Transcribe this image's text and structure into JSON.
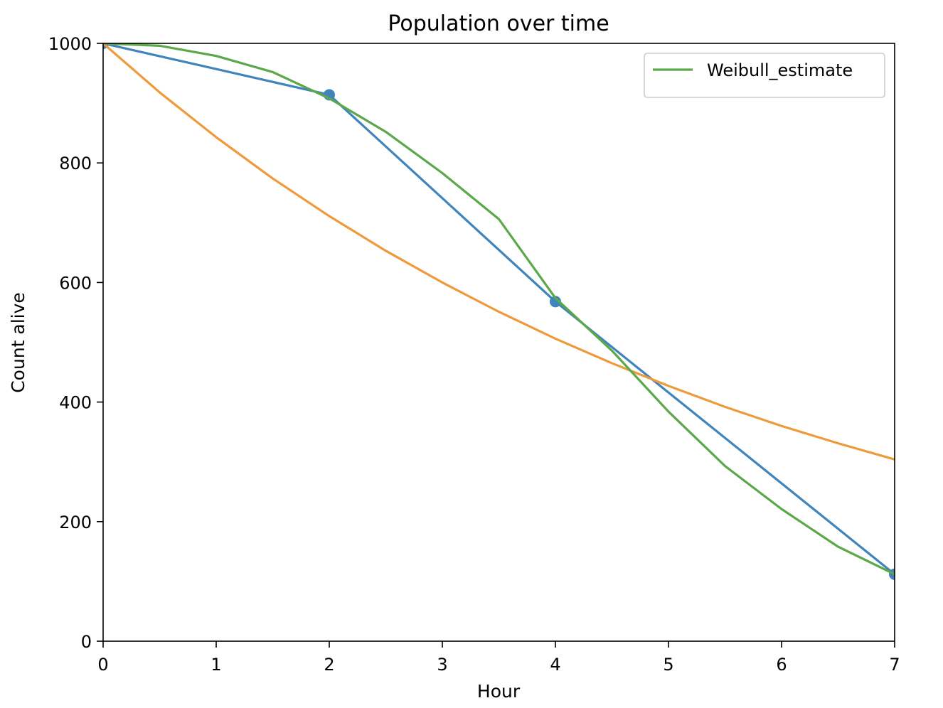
{
  "chart_data": {
    "type": "line",
    "title": "Population over time",
    "xlabel": "Hour",
    "ylabel": "Count alive",
    "xlim": [
      0,
      7
    ],
    "ylim": [
      0,
      1000
    ],
    "xticks": [
      "0",
      "1",
      "2",
      "3",
      "4",
      "5",
      "6",
      "7"
    ],
    "yticks": [
      "0",
      "200",
      "400",
      "600",
      "800",
      "1000"
    ],
    "grid": false,
    "legend": {
      "placement": "top-right",
      "entries": [
        "Weibull_estimate"
      ]
    },
    "series": [
      {
        "type": "line-with-markers",
        "color": "#3f84bb",
        "points": [
          [
            0,
            1000
          ],
          [
            2,
            914
          ],
          [
            4,
            568
          ],
          [
            7,
            112
          ]
        ]
      },
      {
        "type": "line",
        "color": "#ee9a3a",
        "points": [
          [
            0,
            1000
          ],
          [
            0.5,
            918
          ],
          [
            1,
            843
          ],
          [
            1.5,
            774
          ],
          [
            2,
            711
          ],
          [
            2.5,
            653
          ],
          [
            3,
            600
          ],
          [
            3.5,
            551
          ],
          [
            4,
            506
          ],
          [
            4.5,
            465
          ],
          [
            5,
            427
          ],
          [
            5.5,
            392
          ],
          [
            6,
            360
          ],
          [
            6.5,
            331
          ],
          [
            7,
            304
          ]
        ]
      },
      {
        "name": "Weibull_estimate",
        "type": "line",
        "color": "#5ba84a",
        "points": [
          [
            0,
            1000
          ],
          [
            0.5,
            996
          ],
          [
            1,
            979
          ],
          [
            1.5,
            952
          ],
          [
            2,
            908
          ],
          [
            2.5,
            852
          ],
          [
            3,
            783
          ],
          [
            3.5,
            706
          ],
          [
            4,
            574
          ],
          [
            4.5,
            486
          ],
          [
            5,
            384
          ],
          [
            5.5,
            293
          ],
          [
            6,
            221
          ],
          [
            6.5,
            158
          ],
          [
            7,
            112
          ]
        ]
      }
    ]
  }
}
